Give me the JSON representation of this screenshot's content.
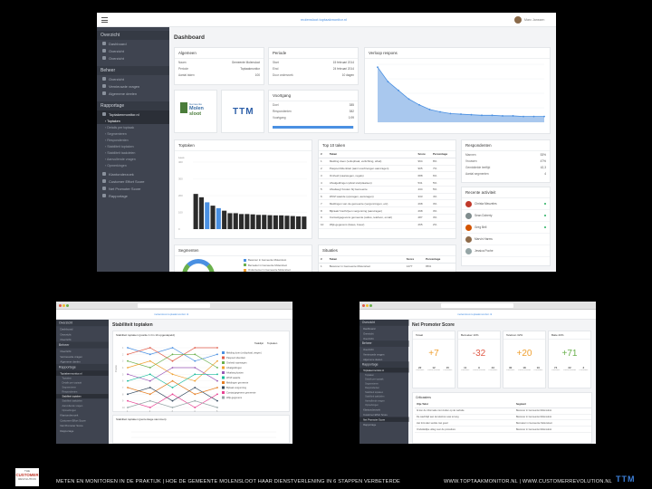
{
  "colors": {
    "sidebar": "#3f4450",
    "accent": "#4a90e2",
    "chart_fill": "#a9c8ee",
    "positive": "#6ab04c",
    "negative": "#e05a47",
    "warm": "#f0a030"
  },
  "main": {
    "url": "molensloot.toptaakmonitor.nl",
    "user": "Marc Janssen",
    "title": "Dashboard",
    "sidebar": {
      "overzicht": "Overzicht",
      "overzicht_items": [
        "Dashboard",
        "Overzicht",
        "Overzicht"
      ],
      "beheer": "Beheer",
      "beheer_items": [
        "Overzicht",
        "Vernieuwde vragen",
        "Algemene deelen"
      ],
      "rapportage": "Rapportage",
      "rapportage_active": "Toptakenmonitor.nl",
      "rapportage_sub": [
        "Toptaken",
        "Details per toptaak",
        "Segmenteren",
        "Respondenten",
        "Stabiliteit toptaken",
        "Stabiliteit taakdelen",
        "Aanvullende vragen",
        "Opmerkingen"
      ],
      "rapportage_more": [
        "Klantonderzoek",
        "Customer Effort Score",
        "Net Promoter Score",
        "Rapportage"
      ]
    },
    "algemeen": {
      "title": "Algemeen",
      "rows": [
        [
          "Naam",
          "Gemeente Molensloot"
        ],
        [
          "Periode",
          "Toptaakmonitor"
        ],
        [
          "Aantal taken",
          "100"
        ]
      ]
    },
    "periode": {
      "title": "Periode",
      "rows": [
        [
          "Start",
          "15 februari 2014"
        ],
        [
          "Eind",
          "24 februari 2014"
        ],
        [
          "Duur onderzoek",
          "10 dagen"
        ]
      ]
    },
    "verloop": {
      "title": "Verloop respons",
      "values": [
        95,
        70,
        55,
        40,
        30,
        22,
        18,
        15,
        14,
        13,
        12,
        12,
        11,
        11,
        10,
        10,
        10
      ]
    },
    "voortgang": {
      "title": "Voortgang",
      "rows": [
        [
          "Doel",
          "385"
        ],
        [
          "Respondenten",
          "382"
        ],
        [
          "Voortgang",
          "0,99"
        ]
      ],
      "progress": 0.99
    },
    "logo": {
      "line1": "Gemeente",
      "line2": "Molen",
      "line3": "sloot",
      "brand": "TTM"
    },
    "toptaken_chart": {
      "title": "Toptaken",
      "ylabel": "Lees",
      "yticks": [
        "400",
        "300",
        "200",
        "100",
        "0"
      ],
      "values": [
        210,
        190,
        160,
        140,
        125,
        110,
        95,
        95,
        90,
        90,
        88,
        85,
        85,
        83,
        82,
        82,
        80,
        78,
        76,
        75
      ],
      "highlight": [
        2,
        4
      ]
    },
    "top10": {
      "title": "Top 10 taken",
      "headers": [
        "#",
        "Taken",
        "Score",
        "Percentage"
      ],
      "rows": [
        [
          "1",
          "Melding doen (vuilophaal, verlichting, afval)",
          "964",
          "8%"
        ],
        [
          "2",
          "Paspoort/Identiteit (aan/ overbrengen aanvragen)",
          "905",
          "7%"
        ],
        [
          "3",
          "Omheid (vaarwegen, regels)",
          "688",
          "6%"
        ],
        [
          "4",
          "Afvalgeldingen (afval stortplaatsen)",
          "531",
          "5%"
        ],
        [
          "5",
          "Afvalweg/ Kosten bij Gemeente",
          "434",
          "5%"
        ],
        [
          "6",
          "WOZ waarde (opvragen, aanvragen)",
          "333",
          "4%"
        ],
        [
          "7",
          "Meldingen van de gemeente (vergunningen, etc)",
          "298",
          "3%"
        ],
        [
          "8",
          "Bijzaak/ Inschrijven vergunning (aanvragen)",
          "298",
          "3%"
        ],
        [
          "9",
          "Contactgegevens gemeente (adres, telefoon, email)",
          "287",
          "3%"
        ],
        [
          "10",
          "Wijk-gegevens (fases, bouw)",
          "265",
          "2%"
        ]
      ]
    },
    "respondenten": {
      "title": "Respondenten",
      "rows": [
        [
          "Mannen",
          "53%"
        ],
        [
          "Vrouwen",
          "47%"
        ],
        [
          "Gemiddelde leeftijd",
          "42,3"
        ],
        [
          "Aantal segmenten",
          "4"
        ]
      ]
    },
    "activiteit": {
      "title": "Recente activiteit",
      "names": [
        "Christa Meuzeles",
        "Sean Doherty",
        "Greg Bell",
        "Marvin Harms",
        "Jessica Poche"
      ]
    },
    "segmenten": {
      "title": "Segmenten",
      "legend": [
        "Bewoner in Gemeente Molensloot",
        "Bezoeker in Gemeente Molensloot",
        "Ondernemer in Gemeente Molensloot"
      ]
    },
    "situaties": {
      "title": "Situaties",
      "headers": [
        "#",
        "Taken",
        "Score",
        "Percentage"
      ],
      "rows": [
        [
          "1",
          "Bewoner in Gemeente Molensloot",
          "1477",
          "86%"
        ]
      ]
    }
  },
  "left_shot": {
    "title": "Stabiliteit toptaken",
    "subtitle": "Stabiliteit toptaken (positie 1 t/m 10 opgestapeld)",
    "subtitle2": "Stabiliteit toptaken (percentage stemmen)",
    "toggle": [
      "Taaklijst",
      "Toptaken"
    ],
    "ylabel": "Positie",
    "legend": [
      "Melding doen (vuilophaal, wegen)",
      "Paspoort identiteit",
      "Omheid vaarwegen",
      "Afvalgeldingen",
      "Afvalweg kosten",
      "WOZ waarde",
      "Meldingen gemeente",
      "Bijzaak vergunning",
      "Contactgegevens gemeente",
      "Wijk-gegevens"
    ],
    "x": [
      1,
      2,
      3,
      4,
      5
    ],
    "series": [
      [
        1,
        2,
        1,
        3,
        2
      ],
      [
        2,
        1,
        3,
        1,
        1
      ],
      [
        3,
        4,
        2,
        2,
        4
      ],
      [
        4,
        3,
        5,
        6,
        3
      ],
      [
        5,
        6,
        4,
        4,
        6
      ],
      [
        6,
        5,
        7,
        5,
        5
      ],
      [
        7,
        8,
        6,
        8,
        7
      ],
      [
        8,
        7,
        9,
        7,
        9
      ],
      [
        9,
        10,
        8,
        10,
        8
      ],
      [
        10,
        9,
        10,
        9,
        10
      ]
    ],
    "series_colors": [
      "#4a90e2",
      "#e05a47",
      "#6ab04c",
      "#f0a030",
      "#9b59b6",
      "#1abc9c",
      "#e67e22",
      "#34495e",
      "#e84393",
      "#95a5a6"
    ]
  },
  "right_shot": {
    "title": "Net Promoter Score",
    "cards": [
      {
        "label": "Totaal",
        "score": "+7",
        "color": "#f0a030",
        "stats": [
          "22",
          "12",
          "15"
        ]
      },
      {
        "label": "Bezoeker 10%",
        "score": "-32",
        "color": "#e05a47",
        "stats": [
          "11",
          "9",
          "43"
        ]
      },
      {
        "label": "Telefoon 32%",
        "score": "+20",
        "color": "#f0a030",
        "stats": [
          "30",
          "18",
          "10"
        ]
      },
      {
        "label": "Balie 20%",
        "score": "+71",
        "color": "#6ab04c",
        "stats": [
          "74",
          "22",
          "3"
        ]
      }
    ],
    "stat_labels": [
      "Promoters",
      "Passief tevreden",
      "Criticasters"
    ],
    "section": "Criticasters",
    "table_headers": [
      "Vrije Tekst",
      "Segment"
    ],
    "rows": [
      [
        "Ik kon de informatie niet vinden op de website",
        "Bewoner in Gemeente Molensloot"
      ],
      [
        "De wachttijd aan de telefoon was te lang",
        "Bewoner in Gemeente Molensloot"
      ],
      [
        "Het formulier werkte niet goed",
        "Bezoeker in Gemeente Molensloot"
      ],
      [
        "Onduidelijke uitleg over de procedure",
        "Bewoner in Gemeente Molensloot"
      ]
    ]
  },
  "footer": {
    "brand_top": "THE",
    "brand_name": "CUSTOMER",
    "brand_sub": "REVOLUTION",
    "text": "METEN EN MONITOREN IN DE PRAKTIJK  |  HOE DE GEMEENTE MOLENSLOOT HAAR DIENSTVERLENING IN 6 STAPPEN VERBETERDE",
    "links": "WWW.TOPTAAKMONITOR.NL  |  WWW.CUSTOMERREVOLUTION.NL",
    "ttm": "TTM"
  }
}
